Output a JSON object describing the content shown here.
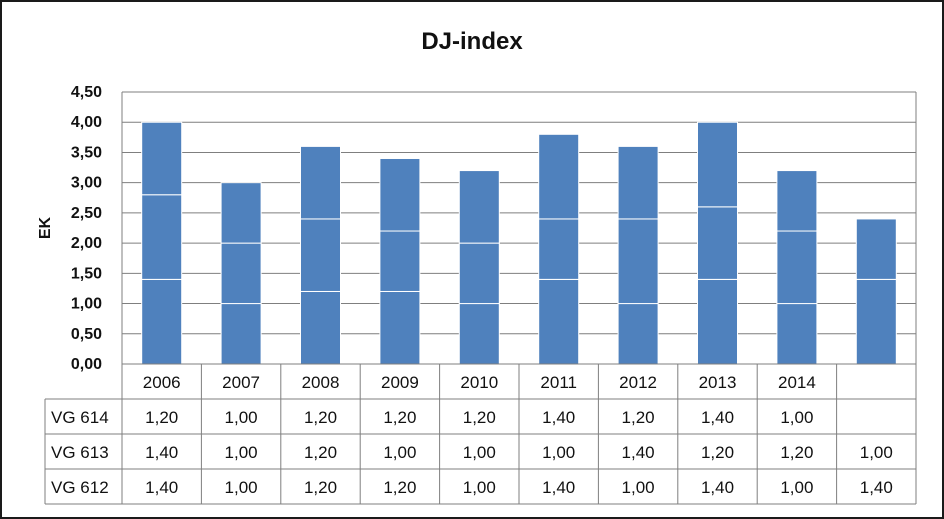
{
  "chart_data": {
    "type": "bar",
    "stacked": true,
    "title": "DJ-index",
    "ylabel": "EK",
    "xlabel": "",
    "ylim": [
      0,
      4.5
    ],
    "yticks": [
      "0,00",
      "0,50",
      "1,00",
      "1,50",
      "2,00",
      "2,50",
      "3,00",
      "3,50",
      "4,00",
      "4,50"
    ],
    "grid": true,
    "categories": [
      "2006",
      "2007",
      "2008",
      "2009",
      "2010",
      "2011",
      "2012",
      "2013",
      "2014",
      ""
    ],
    "series": [
      {
        "name": "VG 612",
        "values": [
          1.4,
          1.0,
          1.2,
          1.2,
          1.0,
          1.4,
          1.0,
          1.4,
          1.0,
          1.4
        ],
        "labels": [
          "1,40",
          "1,00",
          "1,20",
          "1,20",
          "1,00",
          "1,40",
          "1,00",
          "1,40",
          "1,00",
          "1,40"
        ]
      },
      {
        "name": "VG 613",
        "values": [
          1.4,
          1.0,
          1.2,
          1.0,
          1.0,
          1.0,
          1.4,
          1.2,
          1.2,
          1.0
        ],
        "labels": [
          "1,40",
          "1,00",
          "1,20",
          "1,00",
          "1,00",
          "1,00",
          "1,40",
          "1,20",
          "1,20",
          "1,00"
        ]
      },
      {
        "name": "VG 614",
        "values": [
          1.2,
          1.0,
          1.2,
          1.2,
          1.2,
          1.4,
          1.2,
          1.4,
          1.0,
          null
        ],
        "labels": [
          "1,20",
          "1,00",
          "1,20",
          "1,20",
          "1,20",
          "1,40",
          "1,20",
          "1,40",
          "1,00",
          ""
        ]
      }
    ],
    "table_rows": [
      "VG 614",
      "VG 613",
      "VG 612"
    ],
    "bar_color": "#4f81bd",
    "segment_divider_color": "#ffffff",
    "grid_color": "#7f7f7f"
  }
}
